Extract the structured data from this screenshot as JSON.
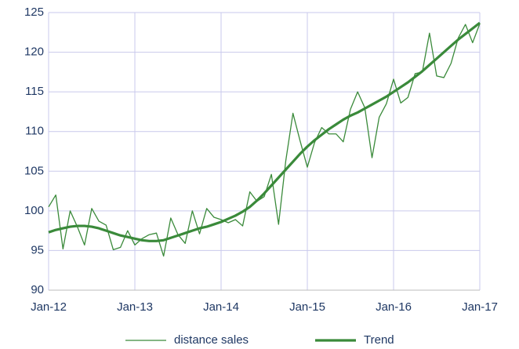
{
  "chart_data": {
    "type": "line",
    "x": [
      "2012-01",
      "2012-02",
      "2012-03",
      "2012-04",
      "2012-05",
      "2012-06",
      "2012-07",
      "2012-08",
      "2012-09",
      "2012-10",
      "2012-11",
      "2012-12",
      "2013-01",
      "2013-02",
      "2013-03",
      "2013-04",
      "2013-05",
      "2013-06",
      "2013-07",
      "2013-08",
      "2013-09",
      "2013-10",
      "2013-11",
      "2013-12",
      "2014-01",
      "2014-02",
      "2014-03",
      "2014-04",
      "2014-05",
      "2014-06",
      "2014-07",
      "2014-08",
      "2014-09",
      "2014-10",
      "2014-11",
      "2014-12",
      "2015-01",
      "2015-02",
      "2015-03",
      "2015-04",
      "2015-05",
      "2015-06",
      "2015-07",
      "2015-08",
      "2015-09",
      "2015-10",
      "2015-11",
      "2015-12",
      "2016-01",
      "2016-02",
      "2016-03",
      "2016-04",
      "2016-05",
      "2016-06",
      "2016-07",
      "2016-08",
      "2016-09",
      "2016-10",
      "2016-11",
      "2016-12",
      "2017-01"
    ],
    "series": [
      {
        "name": "distance sales",
        "color": "#3a8a3a",
        "width": 1.3,
        "values": [
          100.5,
          102,
          95.2,
          100,
          98,
          95.7,
          100.3,
          98.7,
          98.2,
          95.1,
          95.4,
          97.5,
          95.7,
          96.5,
          97,
          97.2,
          94.3,
          99.1,
          97,
          95.9,
          100,
          97.1,
          100.3,
          99.2,
          98.9,
          98.5,
          98.9,
          98.1,
          102.4,
          101.2,
          101.8,
          104.6,
          98.3,
          106.3,
          112.3,
          108.8,
          105.5,
          108.6,
          110.5,
          109.7,
          109.7,
          108.7,
          112.8,
          115,
          113,
          106.7,
          111.8,
          113.5,
          116.6,
          113.6,
          114.3,
          117.3,
          117.5,
          122.4,
          117,
          116.8,
          118.6,
          121.8,
          123.5,
          121.2,
          123.6
        ]
      },
      {
        "name": "Trend",
        "color": "#3a8a3a",
        "width": 3.2,
        "values": [
          97.3,
          97.6,
          97.8,
          98.0,
          98.1,
          98.1,
          98.0,
          97.8,
          97.5,
          97.2,
          96.9,
          96.7,
          96.5,
          96.3,
          96.2,
          96.2,
          96.3,
          96.6,
          96.9,
          97.2,
          97.5,
          97.8,
          98.0,
          98.3,
          98.6,
          99.0,
          99.4,
          99.9,
          100.5,
          101.3,
          102.2,
          103.2,
          104.2,
          105.2,
          106.2,
          107.2,
          108.1,
          108.9,
          109.6,
          110.3,
          110.9,
          111.5,
          112.0,
          112.4,
          112.9,
          113.4,
          113.9,
          114.4,
          115.0,
          115.6,
          116.2,
          116.9,
          117.6,
          118.4,
          119.2,
          120.0,
          120.8,
          121.6,
          122.3,
          123.0,
          123.7
        ]
      }
    ],
    "xlim": [
      "2012-01",
      "2017-01"
    ],
    "xticks": [
      {
        "value": "2012-01",
        "label": "Jan-12"
      },
      {
        "value": "2013-01",
        "label": "Jan-13"
      },
      {
        "value": "2014-01",
        "label": "Jan-14"
      },
      {
        "value": "2015-01",
        "label": "Jan-15"
      },
      {
        "value": "2016-01",
        "label": "Jan-16"
      },
      {
        "value": "2017-01",
        "label": "Jan-17"
      }
    ],
    "ylim": [
      90,
      125
    ],
    "yticks": [
      90,
      95,
      100,
      105,
      110,
      115,
      120,
      125
    ],
    "grid": true,
    "legend": "bottom"
  }
}
